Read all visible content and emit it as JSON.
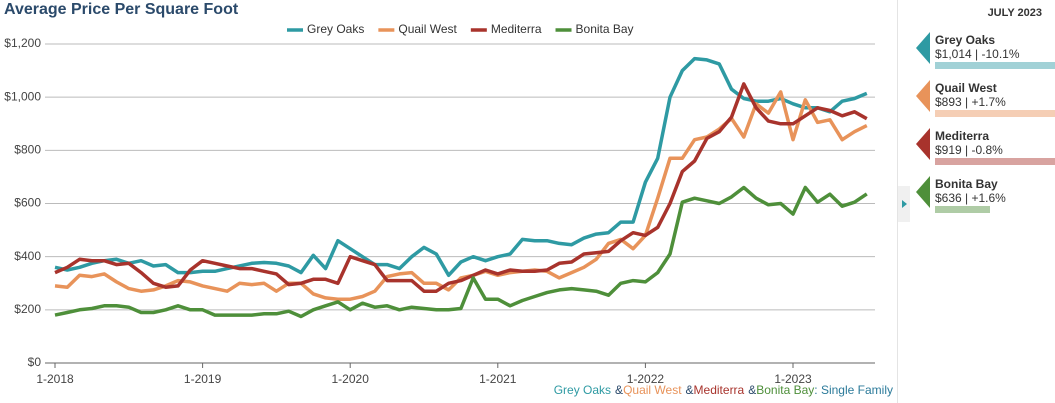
{
  "chart_data": {
    "type": "line",
    "title": "Average Price Per Square Foot",
    "categories": [
      "1-2018",
      null,
      null,
      null,
      null,
      null,
      null,
      null,
      null,
      null,
      null,
      null,
      "1-2019",
      null,
      null,
      null,
      null,
      null,
      null,
      null,
      null,
      null,
      null,
      null,
      "1-2020",
      null,
      null,
      null,
      null,
      null,
      null,
      null,
      null,
      null,
      null,
      null,
      "1-2021",
      null,
      null,
      null,
      null,
      null,
      null,
      null,
      null,
      null,
      null,
      null,
      "1-2022",
      null,
      null,
      null,
      null,
      null,
      null,
      null,
      null,
      null,
      null,
      null,
      "1-2023",
      null,
      null,
      null,
      null,
      null,
      null
    ],
    "series": [
      {
        "name": "Grey Oaks",
        "color": "#2e9aa3",
        "values": [
          360,
          350,
          360,
          375,
          385,
          390,
          375,
          385,
          365,
          370,
          340,
          340,
          345,
          345,
          355,
          365,
          375,
          378,
          375,
          365,
          340,
          405,
          355,
          460,
          430,
          400,
          370,
          370,
          355,
          400,
          435,
          410,
          330,
          380,
          400,
          385,
          400,
          410,
          465,
          460,
          460,
          450,
          445,
          470,
          485,
          490,
          530,
          530,
          680,
          770,
          1000,
          1100,
          1145,
          1140,
          1125,
          1030,
          995,
          985,
          985,
          995,
          975,
          960,
          960,
          945,
          985,
          995,
          1014
        ]
      },
      {
        "name": "Quail West",
        "color": "#e8935a",
        "values": [
          290,
          285,
          330,
          325,
          335,
          305,
          280,
          270,
          275,
          290,
          310,
          305,
          290,
          280,
          270,
          300,
          295,
          300,
          270,
          300,
          300,
          260,
          245,
          240,
          240,
          250,
          270,
          325,
          335,
          340,
          300,
          300,
          275,
          320,
          330,
          345,
          330,
          340,
          345,
          350,
          345,
          320,
          340,
          360,
          390,
          450,
          465,
          430,
          480,
          620,
          770,
          770,
          840,
          850,
          880,
          920,
          850,
          975,
          940,
          1020,
          840,
          990,
          905,
          915,
          840,
          870,
          893
        ]
      },
      {
        "name": "Mediterra",
        "color": "#a8332c",
        "values": [
          340,
          360,
          390,
          385,
          385,
          370,
          375,
          340,
          300,
          285,
          290,
          350,
          385,
          375,
          365,
          355,
          355,
          345,
          335,
          295,
          300,
          315,
          315,
          300,
          400,
          385,
          370,
          310,
          310,
          310,
          270,
          270,
          300,
          310,
          330,
          350,
          335,
          350,
          345,
          345,
          350,
          375,
          380,
          410,
          415,
          420,
          460,
          490,
          480,
          510,
          600,
          720,
          760,
          845,
          870,
          925,
          1050,
          960,
          910,
          900,
          900,
          930,
          960,
          950,
          930,
          945,
          919
        ]
      },
      {
        "name": "Bonita Bay",
        "color": "#4e8f3a",
        "values": [
          180,
          190,
          200,
          205,
          215,
          215,
          210,
          190,
          190,
          200,
          215,
          200,
          200,
          180,
          180,
          180,
          180,
          185,
          185,
          195,
          175,
          200,
          215,
          230,
          200,
          225,
          210,
          215,
          200,
          210,
          205,
          200,
          200,
          205,
          320,
          240,
          240,
          215,
          235,
          250,
          265,
          275,
          280,
          275,
          270,
          255,
          300,
          310,
          305,
          340,
          410,
          605,
          620,
          610,
          600,
          625,
          660,
          620,
          595,
          600,
          560,
          660,
          605,
          635,
          590,
          605,
          636
        ]
      }
    ],
    "ylim": [
      0,
      1200
    ],
    "yticks": [
      {
        "value": 0,
        "label": "$0"
      },
      {
        "value": 200,
        "label": "$200"
      },
      {
        "value": 400,
        "label": "$400"
      },
      {
        "value": 600,
        "label": "$600"
      },
      {
        "value": 800,
        "label": "$800"
      },
      {
        "value": 1000,
        "label": "$1,000"
      },
      {
        "value": 1200,
        "label": "$1,200"
      }
    ],
    "grid": true,
    "legend": "top",
    "footnote_joiner": "&",
    "footnote_suffix": ": Single Family"
  },
  "panel": {
    "header": "JULY 2023",
    "entries": [
      {
        "name": "Grey Oaks",
        "detail": "$1,014 | -10.1%",
        "color": "#2e9aa3"
      },
      {
        "name": "Quail West",
        "detail": "$893 | +1.7%",
        "color": "#e8935a"
      },
      {
        "name": "Mediterra",
        "detail": "$919 | -0.8%",
        "color": "#a8332c"
      },
      {
        "name": "Bonita Bay",
        "detail": "$636 | +1.6%",
        "color": "#4e8f3a"
      }
    ]
  }
}
